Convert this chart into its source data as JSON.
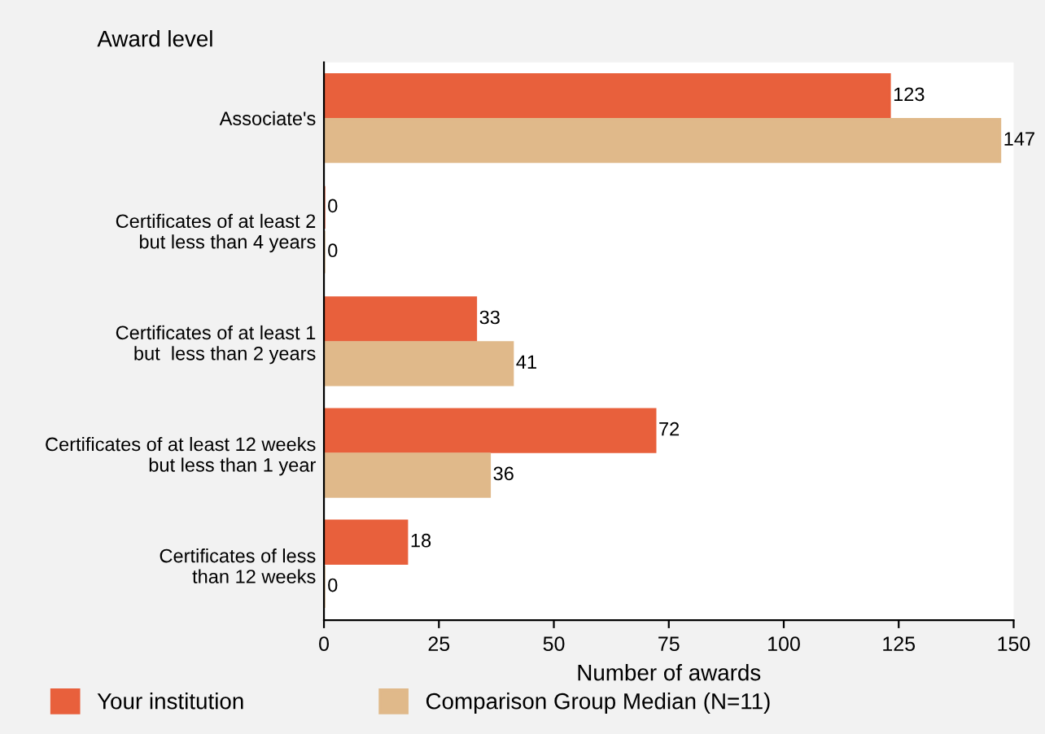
{
  "chart_data": {
    "type": "bar",
    "orientation": "horizontal",
    "ylabel": "Award level",
    "xlabel": "Number of awards",
    "categories": [
      "Associate's",
      "Certificates of at least 2\nbut less than 4 years",
      "Certificates of at least 1\nbut  less than 2 years",
      "Certificates of at least 12 weeks\nbut less than 1 year",
      "Certificates of less\nthan 12 weeks"
    ],
    "series": [
      {
        "name": "Your institution",
        "color": "#e8603c",
        "values": [
          123,
          0,
          33,
          72,
          18
        ]
      },
      {
        "name": "Comparison Group Median (N=11)",
        "color": "#e0b98a",
        "values": [
          147,
          0,
          41,
          36,
          0
        ]
      }
    ],
    "xlim": [
      0,
      150
    ],
    "xticks": [
      0,
      25,
      50,
      75,
      100,
      125,
      150
    ],
    "data_labels": true,
    "legend": "bottom",
    "grid": false
  }
}
